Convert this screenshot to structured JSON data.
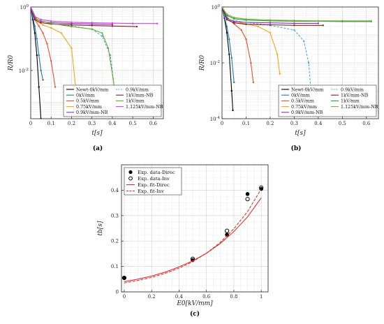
{
  "chart_data": [
    {
      "id": "a",
      "panel_label": "(a)",
      "type": "line",
      "xlabel": "t[s]",
      "ylabel": "R/R0",
      "xlim": [
        0,
        0.65
      ],
      "xticks": [
        "0",
        "0.1",
        "0.2",
        "0.3",
        "0.4",
        "0.5",
        "0.6"
      ],
      "yscale": "log",
      "ylim": [
        0.0003,
        1.0
      ],
      "yticks": [
        {
          "value": 1.0,
          "label": "10^0"
        },
        {
          "value": 0.01,
          "label": "10^-2"
        }
      ],
      "grid": true,
      "legend_position": "bottom-right",
      "series": [
        {
          "name": "Newt-0kV/mm",
          "color": "#000000",
          "style": "solid",
          "x": [
            0,
            0.01,
            0.02,
            0.03,
            0.04,
            0.05
          ],
          "y": [
            1.0,
            0.4,
            0.15,
            0.03,
            0.003,
            0.0003
          ]
        },
        {
          "name": "0kV/mm",
          "color": "#1f77b4",
          "style": "solid",
          "x": [
            0,
            0.01,
            0.02,
            0.03,
            0.04,
            0.05,
            0.06
          ],
          "y": [
            1.0,
            0.5,
            0.25,
            0.1,
            0.03,
            0.01,
            0.005
          ]
        },
        {
          "name": "0.5kV/mm",
          "color": "#e2532c",
          "style": "solid",
          "x": [
            0,
            0.02,
            0.04,
            0.06,
            0.08,
            0.1,
            0.12
          ],
          "y": [
            1.0,
            0.4,
            0.25,
            0.15,
            0.07,
            0.02,
            0.003
          ]
        },
        {
          "name": "0.75kV/mm",
          "color": "#f2a516",
          "style": "solid",
          "x": [
            0,
            0.03,
            0.06,
            0.1,
            0.15,
            0.2,
            0.22
          ],
          "y": [
            1.0,
            0.35,
            0.27,
            0.22,
            0.15,
            0.05,
            0.003
          ]
        },
        {
          "name": "0.9kV/mm-NB",
          "color": "#8a2bb8",
          "style": "solid",
          "x": [
            0,
            0.02,
            0.05,
            0.1,
            0.2,
            0.3,
            0.4
          ],
          "y": [
            1.0,
            0.45,
            0.35,
            0.32,
            0.3,
            0.29,
            0.28
          ]
        },
        {
          "name": "0.9kV/mm",
          "color": "#4aa8e8",
          "style": "dashed",
          "x": [
            0,
            0.03,
            0.1,
            0.2,
            0.3,
            0.35,
            0.39,
            0.41
          ],
          "y": [
            1.0,
            0.4,
            0.3,
            0.25,
            0.2,
            0.12,
            0.03,
            0.003
          ]
        },
        {
          "name": "1kV/mm-NB",
          "color": "#8b1a1a",
          "style": "solid",
          "x": [
            0,
            0.02,
            0.05,
            0.1,
            0.2,
            0.3,
            0.4,
            0.52
          ],
          "y": [
            1.0,
            0.4,
            0.32,
            0.29,
            0.27,
            0.26,
            0.25,
            0.24
          ]
        },
        {
          "name": "1kV/mm",
          "color": "#6aaa2a",
          "style": "solid",
          "x": [
            0,
            0.03,
            0.1,
            0.2,
            0.3,
            0.35,
            0.38,
            0.41
          ],
          "y": [
            1.0,
            0.4,
            0.3,
            0.24,
            0.2,
            0.15,
            0.05,
            0.003
          ]
        },
        {
          "name": "1.125kV/mm-NB",
          "color": "#d63cf0",
          "style": "solid",
          "x": [
            0,
            0.02,
            0.05,
            0.1,
            0.2,
            0.3,
            0.4,
            0.5,
            0.62
          ],
          "y": [
            1.0,
            0.5,
            0.4,
            0.36,
            0.33,
            0.32,
            0.31,
            0.3,
            0.3
          ]
        }
      ]
    },
    {
      "id": "b",
      "panel_label": "(b)",
      "type": "line",
      "xlabel": "t[s]",
      "ylabel": "R/R0",
      "xlim": [
        0,
        0.65
      ],
      "xticks": [
        "0",
        "0.1",
        "0.2",
        "0.3",
        "0.4",
        "0.5",
        "0.6"
      ],
      "yscale": "log",
      "ylim": [
        0.0001,
        1.0
      ],
      "yticks": [
        {
          "value": 1.0,
          "label": "10^0"
        },
        {
          "value": 0.01,
          "label": "10^-2"
        },
        {
          "value": 0.0001,
          "label": "10^-4"
        }
      ],
      "grid": true,
      "legend_position": "bottom-right",
      "series": [
        {
          "name": "Newt-0kV/mm",
          "color": "#000000",
          "style": "solid",
          "x": [
            0,
            0.01,
            0.02,
            0.03,
            0.04,
            0.045
          ],
          "y": [
            1.0,
            0.4,
            0.12,
            0.02,
            0.001,
            0.0002
          ]
        },
        {
          "name": "0kV/mm",
          "color": "#1f77b4",
          "style": "solid",
          "x": [
            0,
            0.01,
            0.02,
            0.03,
            0.04,
            0.05
          ],
          "y": [
            1.0,
            0.45,
            0.2,
            0.07,
            0.015,
            0.002
          ]
        },
        {
          "name": "0.5kV/mm",
          "color": "#e2532c",
          "style": "solid",
          "x": [
            0,
            0.02,
            0.05,
            0.08,
            0.1,
            0.12,
            0.13
          ],
          "y": [
            1.0,
            0.4,
            0.25,
            0.15,
            0.07,
            0.01,
            0.002
          ]
        },
        {
          "name": "0.75kV/mm",
          "color": "#f2a516",
          "style": "solid",
          "x": [
            0,
            0.03,
            0.08,
            0.15,
            0.2,
            0.23,
            0.24
          ],
          "y": [
            1.0,
            0.35,
            0.27,
            0.2,
            0.12,
            0.02,
            0.004
          ]
        },
        {
          "name": "0.9kV/mm-NB",
          "color": "#8a2bb8",
          "style": "solid",
          "x": [
            0,
            0.02,
            0.05,
            0.1,
            0.2,
            0.3,
            0.4
          ],
          "y": [
            1.0,
            0.4,
            0.3,
            0.28,
            0.27,
            0.26,
            0.26
          ]
        },
        {
          "name": "0.9kV/mm",
          "color": "#4aa8e8",
          "style": "dashed",
          "x": [
            0,
            0.03,
            0.1,
            0.2,
            0.3,
            0.34,
            0.36,
            0.37
          ],
          "y": [
            1.0,
            0.35,
            0.28,
            0.22,
            0.15,
            0.06,
            0.01,
            0.001
          ]
        },
        {
          "name": "1kV/mm-NB",
          "color": "#8b1a1a",
          "style": "solid",
          "x": [
            0,
            0.02,
            0.05,
            0.1,
            0.2,
            0.3,
            0.42
          ],
          "y": [
            1.0,
            0.35,
            0.27,
            0.24,
            0.23,
            0.22,
            0.22
          ]
        },
        {
          "name": "1kV/mm",
          "color": "#2ca02c",
          "style": "solid",
          "x": [
            0,
            0.02,
            0.05,
            0.1,
            0.2,
            0.3,
            0.4,
            0.5,
            0.62
          ],
          "y": [
            1.0,
            0.5,
            0.38,
            0.34,
            0.32,
            0.31,
            0.31,
            0.3,
            0.3
          ]
        },
        {
          "name": "1.125kV/mm-NB",
          "color": "#7ab03a",
          "style": "solid",
          "x": [
            0,
            0.02,
            0.05,
            0.1,
            0.2,
            0.3,
            0.4,
            0.5,
            0.62
          ],
          "y": [
            1.0,
            0.55,
            0.42,
            0.37,
            0.34,
            0.33,
            0.32,
            0.32,
            0.32
          ]
        }
      ]
    },
    {
      "id": "c",
      "panel_label": "(c)",
      "type": "scatter",
      "xlabel": "E0[kV/mm]",
      "ylabel": "tb[s]",
      "xlim": [
        -0.02,
        1.05
      ],
      "ylim": [
        0,
        0.5
      ],
      "xticks": [
        "0",
        "0.2",
        "0.4",
        "0.6",
        "0.8",
        "1"
      ],
      "yticks": [
        "0",
        "0.1",
        "0.2",
        "0.3",
        "0.4"
      ],
      "grid": true,
      "legend_position": "top-left",
      "series": [
        {
          "name": "Exp. data-Direc",
          "kind": "points-filled",
          "color": "#000000",
          "x": [
            0,
            0.5,
            0.75,
            0.9,
            1.0
          ],
          "y": [
            0.055,
            0.125,
            0.225,
            0.385,
            0.405
          ]
        },
        {
          "name": "Exp. data-Inv",
          "kind": "points-open",
          "color": "#000000",
          "x": [
            0,
            0.5,
            0.75,
            0.9,
            1.0
          ],
          "y": [
            0.055,
            0.13,
            0.24,
            0.365,
            0.41
          ]
        },
        {
          "name": "Exp. fit-Direc",
          "kind": "line",
          "style": "solid",
          "color": "#e02020",
          "x": [
            0,
            0.1,
            0.2,
            0.3,
            0.4,
            0.5,
            0.6,
            0.7,
            0.8,
            0.9,
            1.0
          ],
          "y": [
            0.04,
            0.05,
            0.062,
            0.078,
            0.098,
            0.122,
            0.152,
            0.19,
            0.237,
            0.295,
            0.37
          ]
        },
        {
          "name": "Exp. fit-Inv",
          "kind": "line",
          "style": "dashed",
          "color": "#e02020",
          "x": [
            0,
            0.1,
            0.2,
            0.3,
            0.4,
            0.5,
            0.6,
            0.7,
            0.8,
            0.9,
            1.0
          ],
          "y": [
            0.035,
            0.045,
            0.057,
            0.073,
            0.093,
            0.119,
            0.152,
            0.194,
            0.248,
            0.316,
            0.405
          ]
        }
      ]
    }
  ]
}
